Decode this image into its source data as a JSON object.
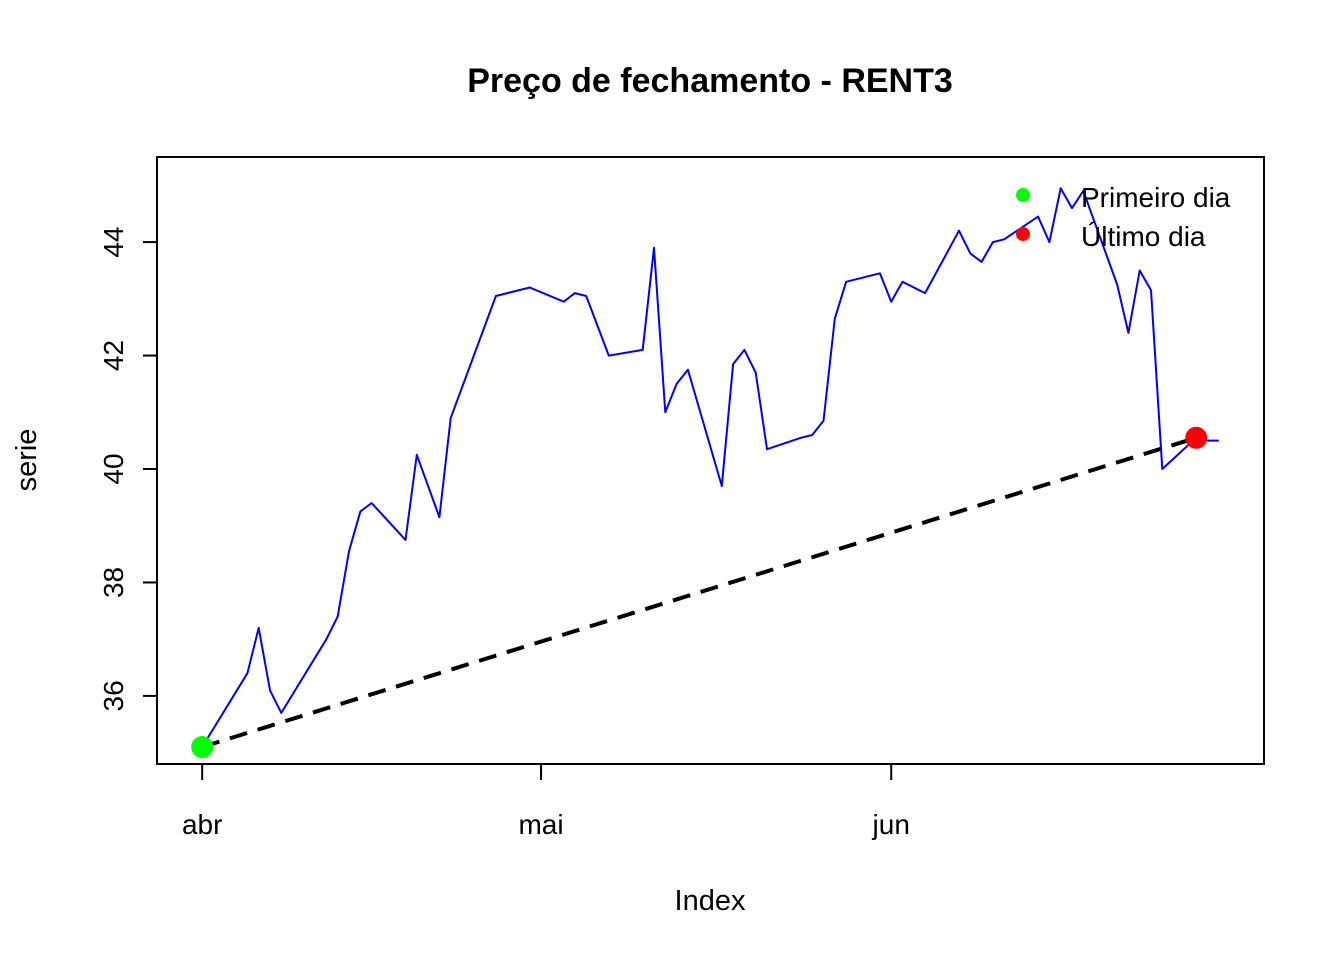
{
  "chart_data": {
    "type": "line",
    "title": "Preço de fechamento - RENT3",
    "xlabel": "Index",
    "ylabel": "serie",
    "x_ticks": [
      {
        "label": "abr",
        "date": "2021-04-01"
      },
      {
        "label": "mai",
        "date": "2021-05-01"
      },
      {
        "label": "jun",
        "date": "2021-06-01"
      }
    ],
    "y_ticks": [
      36,
      38,
      40,
      42,
      44
    ],
    "xlim": [
      "2021-03-28",
      "2021-07-04"
    ],
    "ylim": [
      34.8,
      45.5
    ],
    "grid": false,
    "legend_position": "top-right",
    "series": [
      {
        "color": "#0000ff",
        "x": [
          "2021-04-01",
          "2021-04-05",
          "2021-04-06",
          "2021-04-07",
          "2021-04-08",
          "2021-04-12",
          "2021-04-13",
          "2021-04-14",
          "2021-04-15",
          "2021-04-16",
          "2021-04-19",
          "2021-04-20",
          "2021-04-22",
          "2021-04-23",
          "2021-04-27",
          "2021-04-30",
          "2021-05-03",
          "2021-05-04",
          "2021-05-05",
          "2021-05-07",
          "2021-05-10",
          "2021-05-11",
          "2021-05-12",
          "2021-05-13",
          "2021-05-14",
          "2021-05-17",
          "2021-05-18",
          "2021-05-19",
          "2021-05-20",
          "2021-05-21",
          "2021-05-24",
          "2021-05-25",
          "2021-05-26",
          "2021-05-27",
          "2021-05-28",
          "2021-05-31",
          "2021-06-01",
          "2021-06-02",
          "2021-06-04",
          "2021-06-07",
          "2021-06-08",
          "2021-06-09",
          "2021-06-10",
          "2021-06-11",
          "2021-06-14",
          "2021-06-15",
          "2021-06-16",
          "2021-06-17",
          "2021-06-18",
          "2021-06-21",
          "2021-06-22",
          "2021-06-23",
          "2021-06-24",
          "2021-06-25",
          "2021-06-28",
          "2021-06-29",
          "2021-06-30"
        ],
        "y": [
          35.1,
          36.4,
          37.2,
          36.1,
          35.7,
          37.0,
          37.4,
          38.55,
          39.25,
          39.4,
          38.75,
          40.25,
          39.15,
          40.9,
          43.05,
          43.2,
          42.95,
          43.1,
          43.05,
          42.0,
          42.1,
          43.9,
          41.0,
          41.5,
          41.75,
          39.7,
          41.85,
          42.1,
          41.7,
          40.35,
          40.55,
          40.6,
          40.85,
          42.65,
          43.3,
          43.45,
          42.95,
          43.3,
          43.1,
          44.2,
          43.8,
          43.65,
          44.0,
          44.05,
          44.45,
          44.0,
          44.95,
          44.6,
          44.9,
          43.25,
          42.4,
          43.5,
          43.15,
          40.0,
          40.55,
          40.5,
          40.5
        ]
      }
    ],
    "trend_line": {
      "color": "#000000",
      "style": "dashed",
      "from": {
        "x": "2021-04-01",
        "y": 35.1
      },
      "to": {
        "x": "2021-06-28",
        "y": 40.55
      }
    },
    "markers": [
      {
        "name": "Primeiro dia",
        "color": "#00ff00",
        "x": "2021-04-01",
        "y": 35.1
      },
      {
        "name": "Último dia",
        "color": "#ff0000",
        "x": "2021-06-28",
        "y": 40.55
      }
    ],
    "legend": [
      {
        "label": "Primeiro dia",
        "color": "#00ff00"
      },
      {
        "label": "Último dia",
        "color": "#ff0000"
      }
    ]
  }
}
